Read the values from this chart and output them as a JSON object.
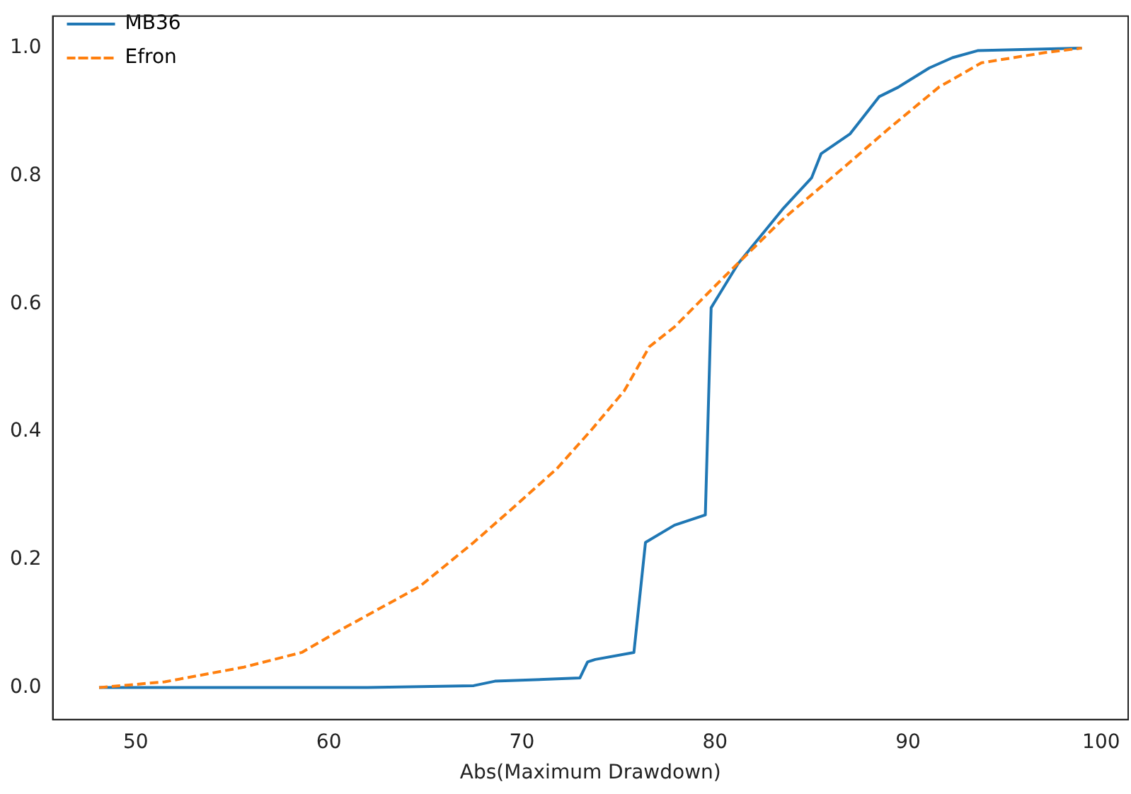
{
  "chart_data": {
    "type": "line",
    "xlabel": "Abs(Maximum Drawdown)",
    "xlim": [
      45.7,
      101.4
    ],
    "xticks": [
      50,
      60,
      70,
      80,
      90,
      100
    ],
    "ylim": [
      -0.05,
      1.05
    ],
    "yticks": [
      {
        "value": 0,
        "label": "0.0"
      },
      {
        "value": 0.2,
        "label": "0.2"
      },
      {
        "value": 0.4,
        "label": "0.4"
      },
      {
        "value": 0.6,
        "label": "0.6"
      },
      {
        "value": 0.8,
        "label": "0.8"
      },
      {
        "value": 1,
        "label": "1.0"
      }
    ],
    "legend": "top left",
    "grid": false,
    "marker": "none",
    "series": [
      {
        "name": "MB36",
        "color": "#1f77b4",
        "line_style": "solid",
        "x": [
          48.1,
          62,
          67.5,
          68.6,
          73.0,
          73.4,
          73.8,
          75.8,
          76.4,
          77.9,
          79.5,
          79.8,
          81.2,
          83.5,
          85.0,
          85.5,
          87.0,
          88.5,
          89.5,
          91.1,
          92.3,
          93.6,
          99.0
        ],
        "values": [
          0,
          0,
          0.003,
          0.01,
          0.015,
          0.04,
          0.044,
          0.055,
          0.227,
          0.254,
          0.27,
          0.594,
          0.663,
          0.748,
          0.797,
          0.835,
          0.866,
          0.924,
          0.939,
          0.969,
          0.985,
          0.996,
          1.0
        ]
      },
      {
        "name": "Efron",
        "color": "#ff7f0e",
        "line_style": "dashed",
        "x": [
          48.1,
          51.5,
          55.6,
          58.6,
          60.6,
          64.7,
          67.5,
          69.8,
          71.8,
          73.6,
          75.3,
          76.6,
          77.9,
          80.4,
          83.5,
          86.5,
          89.0,
          91.6,
          93.8,
          97.1,
          99.0
        ],
        "values": [
          0,
          0.009,
          0.032,
          0.055,
          0.09,
          0.158,
          0.227,
          0.288,
          0.342,
          0.403,
          0.464,
          0.533,
          0.564,
          0.64,
          0.732,
          0.809,
          0.874,
          0.939,
          0.977,
          0.993,
          1.0
        ]
      }
    ]
  }
}
